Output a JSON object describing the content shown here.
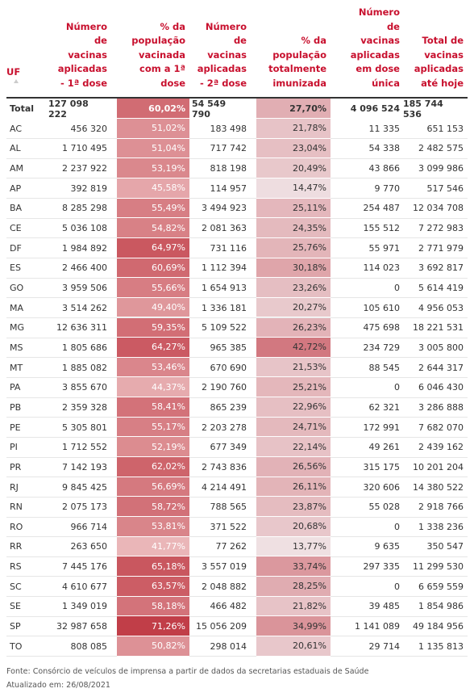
{
  "table": {
    "header": [
      [
        "UF"
      ],
      [
        "Número",
        "de",
        "vacinas",
        "aplicadas",
        "- 1ª dose"
      ],
      [
        "% da",
        "população",
        "vacinada",
        "com a 1ª",
        "dose"
      ],
      [
        "Número",
        "de",
        "vacinas",
        "aplicadas",
        "- 2ª dose"
      ],
      [
        "% da",
        "população",
        "totalmente",
        "imunizada"
      ],
      [
        "Número",
        "de",
        "vacinas",
        "aplicadas",
        "em dose",
        "única"
      ],
      [
        "Total de",
        "vacinas",
        "aplicadas",
        "até hoje"
      ]
    ],
    "rows": [
      [
        "Total",
        "127 098 222",
        "60,02%",
        "54 549 790",
        "27,70%",
        "4 096 524",
        "185 744 536"
      ],
      [
        "AC",
        "456 320",
        "51,02%",
        "183 498",
        "21,78%",
        "11 335",
        "651 153"
      ],
      [
        "AL",
        "1 710 495",
        "51,04%",
        "717 742",
        "23,04%",
        "54 338",
        "2 482 575"
      ],
      [
        "AM",
        "2 237 922",
        "53,19%",
        "818 198",
        "20,49%",
        "43 866",
        "3 099 986"
      ],
      [
        "AP",
        "392 819",
        "45,58%",
        "114 957",
        "14,47%",
        "9 770",
        "517 546"
      ],
      [
        "BA",
        "8 285 298",
        "55,49%",
        "3 494 923",
        "25,11%",
        "254 487",
        "12 034 708"
      ],
      [
        "CE",
        "5 036 108",
        "54,82%",
        "2 081 363",
        "24,35%",
        "155 512",
        "7 272 983"
      ],
      [
        "DF",
        "1 984 892",
        "64,97%",
        "731 116",
        "25,76%",
        "55 971",
        "2 771 979"
      ],
      [
        "ES",
        "2 466 400",
        "60,69%",
        "1 112 394",
        "30,18%",
        "114 023",
        "3 692 817"
      ],
      [
        "GO",
        "3 959 506",
        "55,66%",
        "1 654 913",
        "23,26%",
        "0",
        "5 614 419"
      ],
      [
        "MA",
        "3 514 262",
        "49,40%",
        "1 336 181",
        "20,27%",
        "105 610",
        "4 956 053"
      ],
      [
        "MG",
        "12 636 311",
        "59,35%",
        "5 109 522",
        "26,23%",
        "475 698",
        "18 221 531"
      ],
      [
        "MS",
        "1 805 686",
        "64,27%",
        "965 385",
        "42,72%",
        "234 729",
        "3 005 800"
      ],
      [
        "MT",
        "1 885 082",
        "53,46%",
        "670 690",
        "21,53%",
        "88 545",
        "2 644 317"
      ],
      [
        "PA",
        "3 855 670",
        "44,37%",
        "2 190 760",
        "25,21%",
        "0",
        "6 046 430"
      ],
      [
        "PB",
        "2 359 328",
        "58,41%",
        "865 239",
        "22,96%",
        "62 321",
        "3 286 888"
      ],
      [
        "PE",
        "5 305 801",
        "55,17%",
        "2 203 278",
        "24,71%",
        "172 991",
        "7 682 070"
      ],
      [
        "PI",
        "1 712 552",
        "52,19%",
        "677 349",
        "22,14%",
        "49 261",
        "2 439 162"
      ],
      [
        "PR",
        "7 142 193",
        "62,02%",
        "2 743 836",
        "26,56%",
        "315 175",
        "10 201 204"
      ],
      [
        "RJ",
        "9 845 425",
        "56,69%",
        "4 214 491",
        "26,11%",
        "320 606",
        "14 380 522"
      ],
      [
        "RN",
        "2 075 173",
        "58,72%",
        "788 565",
        "23,87%",
        "55 028",
        "2 918 766"
      ],
      [
        "RO",
        "966 714",
        "53,81%",
        "371 522",
        "20,68%",
        "0",
        "1 338 236"
      ],
      [
        "RR",
        "263 650",
        "41,77%",
        "77 262",
        "13,77%",
        "9 635",
        "350 547"
      ],
      [
        "RS",
        "7 445 176",
        "65,18%",
        "3 557 019",
        "33,74%",
        "297 335",
        "11 299 530"
      ],
      [
        "SC",
        "4 610 677",
        "63,57%",
        "2 048 882",
        "28,25%",
        "0",
        "6 659 559"
      ],
      [
        "SE",
        "1 349 019",
        "58,18%",
        "466 482",
        "21,82%",
        "39 485",
        "1 854 986"
      ],
      [
        "SP",
        "32 987 658",
        "71,26%",
        "15 056 209",
        "34,99%",
        "1 141 089",
        "49 184 956"
      ],
      [
        "TO",
        "808 085",
        "50,82%",
        "298 014",
        "20,61%",
        "29 714",
        "1 135 813"
      ]
    ]
  },
  "footer": {
    "source": "Fonte: Consórcio de veículos de imprensa a partir de dados da secretarias estaduais de Saúde",
    "updated": "Atualizado em: 26/08/2021"
  }
}
